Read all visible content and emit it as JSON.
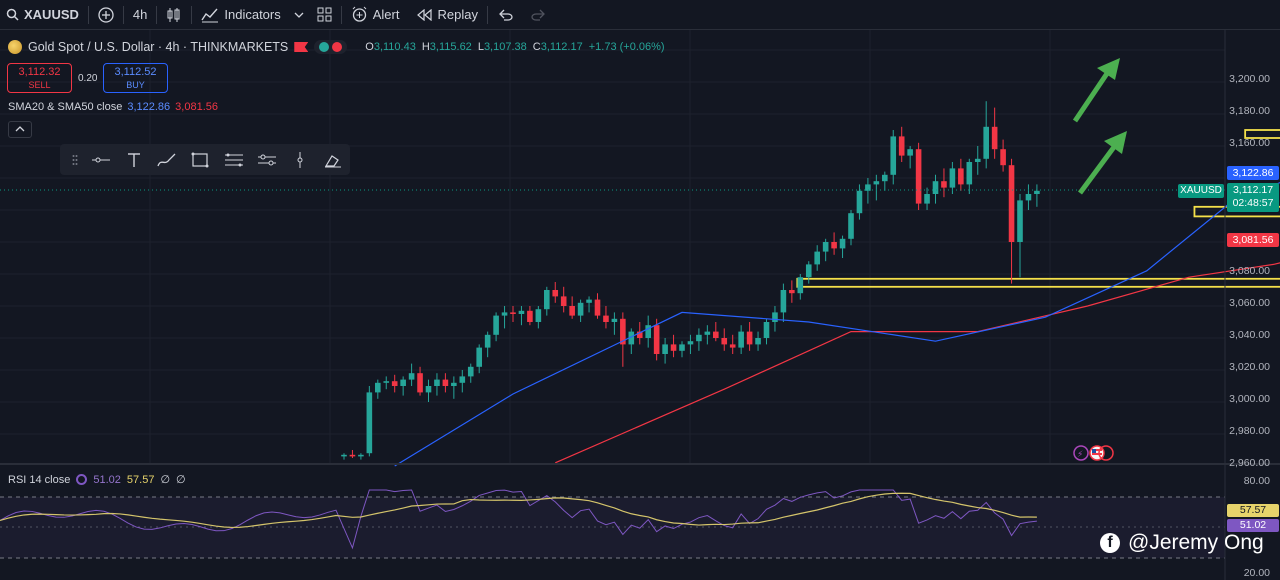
{
  "toolbar": {
    "symbol": "XAUUSD",
    "interval": "4h",
    "indicators_label": "Indicators",
    "alert_label": "Alert",
    "replay_label": "Replay"
  },
  "legend": {
    "title": "Gold Spot / U.S. Dollar · 4h · THINKMARKETS",
    "open_label": "O",
    "open": "3,110.43",
    "high_label": "H",
    "high": "3,115.62",
    "low_label": "L",
    "low": "3,107.38",
    "close_label": "C",
    "close": "3,112.17",
    "change": "+1.73 (+0.06%)"
  },
  "trade": {
    "sell_price": "3,112.32",
    "sell_label": "SELL",
    "spread": "0.20",
    "buy_price": "3,112.52",
    "buy_label": "BUY"
  },
  "sma": {
    "label": "SMA20 & SMA50 close",
    "sma20": "3,122.86",
    "sma50": "3,081.56"
  },
  "rsi": {
    "label": "RSI 14 close",
    "value": "51.02",
    "ma": "57.57",
    "extra1": "∅",
    "extra2": "∅"
  },
  "price_axis": [
    "3,200.00",
    "3,180.00",
    "3,160.00",
    "3,140.00",
    "3,120.00",
    "3,100.00",
    "3,080.00",
    "3,060.00",
    "3,040.00",
    "3,020.00",
    "3,000.00",
    "2,980.00",
    "2,960.00"
  ],
  "rsi_axis": [
    "80.00",
    "20.00"
  ],
  "tags": {
    "sma20": "3,122.86",
    "last_price": "3,112.17",
    "countdown": "02:48:57",
    "sma50": "3,081.56",
    "rsi_ma": "57.57",
    "rsi_value": "51.02",
    "symbol_tag": "XAUUSD"
  },
  "watermark": "@Jeremy Ong",
  "colors": {
    "up": "#26a69a",
    "down": "#f23645",
    "sma20": "#2962ff",
    "sma50": "#f23645",
    "zone": "#f5e14a",
    "arrow": "#4caf50",
    "rsi": "#7e57c2",
    "rsi_ma": "#d4c46b"
  },
  "chart_data": {
    "type": "candlestick",
    "ylim": [
      2944,
      3206
    ],
    "candles": [
      [
        2946,
        2948,
        2944,
        2947
      ],
      [
        2947,
        2950,
        2945,
        2946
      ],
      [
        2946,
        2948,
        2944,
        2947
      ],
      [
        2948,
        2990,
        2946,
        2986
      ],
      [
        2986,
        2994,
        2982,
        2992
      ],
      [
        2992,
        2996,
        2988,
        2993
      ],
      [
        2993,
        2997,
        2986,
        2990
      ],
      [
        2990,
        2996,
        2984,
        2994
      ],
      [
        2994,
        3004,
        2990,
        2998
      ],
      [
        2998,
        3002,
        2984,
        2986
      ],
      [
        2986,
        2994,
        2980,
        2990
      ],
      [
        2990,
        2998,
        2984,
        2994
      ],
      [
        2994,
        2998,
        2986,
        2990
      ],
      [
        2990,
        2996,
        2982,
        2992
      ],
      [
        2992,
        3000,
        2986,
        2996
      ],
      [
        2996,
        3004,
        2992,
        3002
      ],
      [
        3002,
        3016,
        2998,
        3014
      ],
      [
        3014,
        3024,
        3008,
        3022
      ],
      [
        3022,
        3036,
        3018,
        3034
      ],
      [
        3034,
        3040,
        3026,
        3036
      ],
      [
        3036,
        3040,
        3030,
        3035
      ],
      [
        3035,
        3040,
        3028,
        3037
      ],
      [
        3037,
        3040,
        3028,
        3030
      ],
      [
        3030,
        3040,
        3026,
        3038
      ],
      [
        3038,
        3052,
        3034,
        3050
      ],
      [
        3050,
        3055,
        3042,
        3046
      ],
      [
        3046,
        3052,
        3036,
        3040
      ],
      [
        3040,
        3046,
        3032,
        3034
      ],
      [
        3034,
        3044,
        3030,
        3042
      ],
      [
        3042,
        3046,
        3036,
        3044
      ],
      [
        3044,
        3048,
        3032,
        3034
      ],
      [
        3034,
        3040,
        3026,
        3030
      ],
      [
        3030,
        3036,
        3022,
        3032
      ],
      [
        3032,
        3036,
        3002,
        3016
      ],
      [
        3016,
        3026,
        3010,
        3024
      ],
      [
        3024,
        3030,
        3016,
        3020
      ],
      [
        3020,
        3034,
        3014,
        3028
      ],
      [
        3028,
        3032,
        3006,
        3010
      ],
      [
        3010,
        3020,
        3004,
        3016
      ],
      [
        3016,
        3022,
        3008,
        3012
      ],
      [
        3012,
        3018,
        3008,
        3016
      ],
      [
        3016,
        3022,
        3010,
        3018
      ],
      [
        3018,
        3026,
        3012,
        3022
      ],
      [
        3022,
        3028,
        3016,
        3024
      ],
      [
        3024,
        3030,
        3018,
        3020
      ],
      [
        3020,
        3026,
        3012,
        3016
      ],
      [
        3016,
        3022,
        3010,
        3014
      ],
      [
        3014,
        3028,
        3010,
        3024
      ],
      [
        3024,
        3030,
        3012,
        3016
      ],
      [
        3016,
        3024,
        3012,
        3020
      ],
      [
        3020,
        3032,
        3016,
        3030
      ],
      [
        3030,
        3040,
        3024,
        3036
      ],
      [
        3036,
        3054,
        3030,
        3050
      ],
      [
        3050,
        3056,
        3042,
        3048
      ],
      [
        3048,
        3060,
        3044,
        3058
      ],
      [
        3058,
        3068,
        3054,
        3066
      ],
      [
        3066,
        3078,
        3062,
        3074
      ],
      [
        3074,
        3082,
        3068,
        3080
      ],
      [
        3080,
        3086,
        3072,
        3076
      ],
      [
        3076,
        3084,
        3070,
        3082
      ],
      [
        3082,
        3100,
        3078,
        3098
      ],
      [
        3098,
        3116,
        3094,
        3112
      ],
      [
        3112,
        3120,
        3104,
        3116
      ],
      [
        3116,
        3122,
        3106,
        3118
      ],
      [
        3118,
        3124,
        3112,
        3122
      ],
      [
        3122,
        3150,
        3116,
        3146
      ],
      [
        3146,
        3152,
        3130,
        3134
      ],
      [
        3134,
        3140,
        3126,
        3138
      ],
      [
        3138,
        3142,
        3100,
        3104
      ],
      [
        3104,
        3114,
        3100,
        3110
      ],
      [
        3110,
        3122,
        3104,
        3118
      ],
      [
        3118,
        3126,
        3108,
        3114
      ],
      [
        3114,
        3130,
        3110,
        3126
      ],
      [
        3126,
        3132,
        3112,
        3116
      ],
      [
        3116,
        3132,
        3110,
        3130
      ],
      [
        3130,
        3140,
        3122,
        3132
      ],
      [
        3132,
        3168,
        3126,
        3152
      ],
      [
        3152,
        3164,
        3132,
        3138
      ],
      [
        3138,
        3144,
        3124,
        3128
      ],
      [
        3128,
        3132,
        3054,
        3080
      ],
      [
        3080,
        3110,
        3058,
        3106
      ],
      [
        3106,
        3116,
        3100,
        3110
      ],
      [
        3110,
        3116,
        3102,
        3112
      ]
    ],
    "sma20": [
      [
        6,
        2940
      ],
      [
        20,
        2985
      ],
      [
        40,
        3036
      ],
      [
        55,
        3030
      ],
      [
        70,
        3018
      ],
      [
        83,
        3033
      ],
      [
        95,
        3062
      ],
      [
        105,
        3105
      ],
      [
        115,
        3126
      ],
      [
        122,
        3124
      ]
    ],
    "sma50": [
      [
        25,
        2942
      ],
      [
        45,
        2988
      ],
      [
        60,
        3024
      ],
      [
        75,
        3024
      ],
      [
        88,
        3040
      ],
      [
        100,
        3058
      ],
      [
        110,
        3066
      ],
      [
        118,
        3076
      ],
      [
        122,
        3081
      ]
    ],
    "zones": [
      {
        "from": 54,
        "to": 122,
        "low": 3052,
        "high": 3057
      },
      {
        "from": 101,
        "to": 122,
        "low": 3096,
        "high": 3102
      },
      {
        "from": 107,
        "to": 122,
        "low": 3145,
        "high": 3150
      }
    ],
    "rsi_ylim": [
      20,
      80
    ]
  }
}
